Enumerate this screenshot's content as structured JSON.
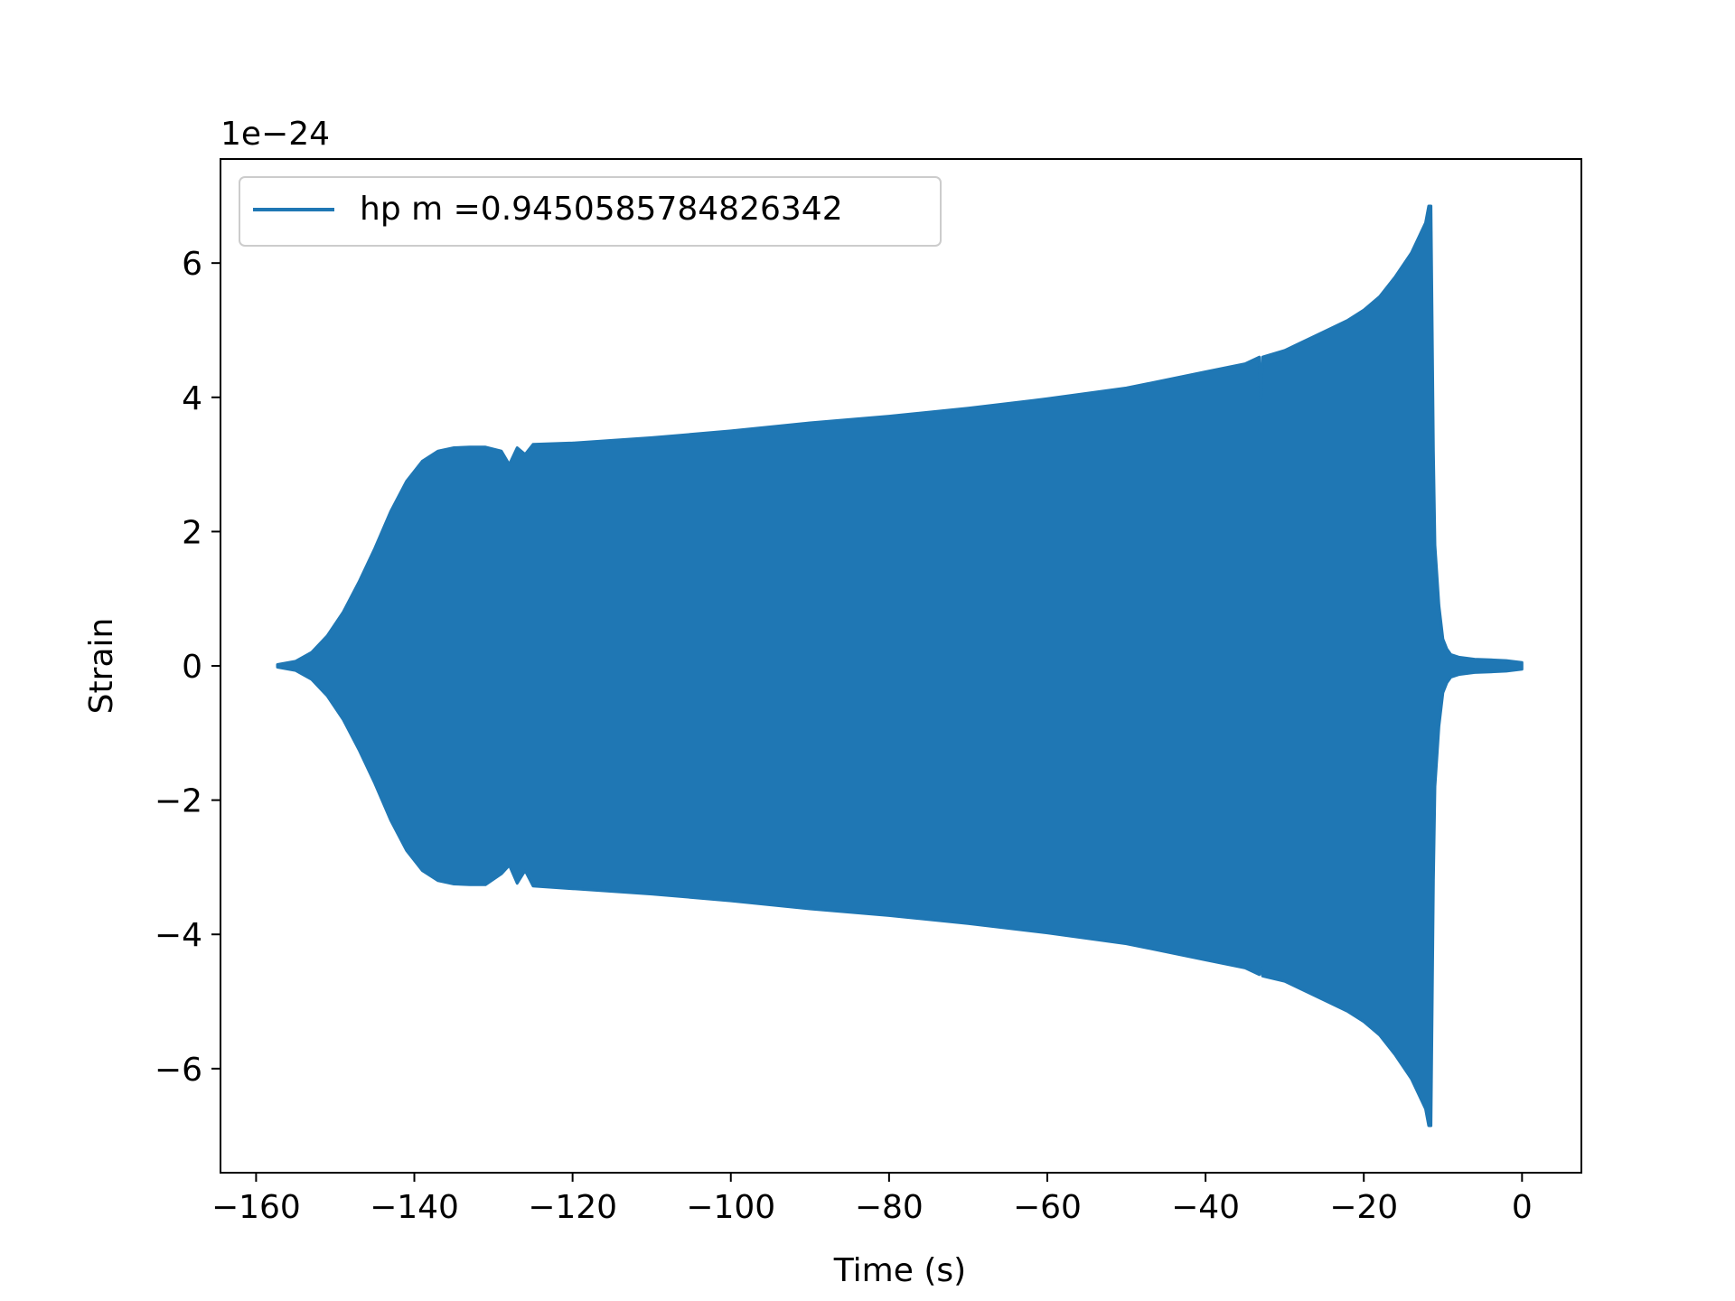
{
  "chart_data": {
    "type": "line",
    "title": "",
    "xlabel": "Time (s)",
    "ylabel": "Strain",
    "y_offset_label": "1e−24",
    "xlim": [
      -164.5,
      7.5
    ],
    "ylim": [
      -7.55,
      7.55
    ],
    "xticks": [
      -160,
      -140,
      -120,
      -100,
      -80,
      -60,
      -40,
      -20,
      0
    ],
    "xtick_labels": [
      "−160",
      "−140",
      "−120",
      "−100",
      "−80",
      "−60",
      "−40",
      "−20",
      "0"
    ],
    "yticks": [
      -6,
      -4,
      -2,
      0,
      2,
      4,
      6
    ],
    "ytick_labels": [
      "−6",
      "−4",
      "−2",
      "0",
      "2",
      "4",
      "6"
    ],
    "grid": false,
    "legend_position": "top-left",
    "series": [
      {
        "name": "hp m =0.9450585784826342",
        "color": "#1f77b4",
        "envelope_description_points": {
          "t": [
            -157.3,
            -155,
            -153,
            -151,
            -149,
            -147,
            -145,
            -143,
            -141,
            -139,
            -137,
            -135,
            -133,
            -131,
            -129,
            -128,
            -127,
            -126,
            -125,
            -120,
            -110,
            -100,
            -90,
            -80,
            -70,
            -60,
            -50,
            -40,
            -35,
            -33.2,
            -33,
            -32.8,
            -30,
            -25,
            -22,
            -20,
            -18,
            -16,
            -14,
            -13,
            -12.2,
            -11.8,
            -11.5,
            -11.2,
            -11,
            -10.5,
            -10,
            -9.5,
            -9,
            -8,
            -6,
            -4,
            -2,
            0
          ],
          "upper": [
            0.02,
            0.07,
            0.2,
            0.45,
            0.8,
            1.25,
            1.75,
            2.3,
            2.75,
            3.05,
            3.2,
            3.25,
            3.26,
            3.26,
            3.2,
            3.0,
            3.25,
            3.15,
            3.3,
            3.32,
            3.4,
            3.5,
            3.62,
            3.72,
            3.84,
            3.98,
            4.14,
            4.38,
            4.5,
            4.6,
            3.95,
            4.6,
            4.7,
            4.98,
            5.15,
            5.3,
            5.5,
            5.8,
            6.15,
            6.4,
            6.6,
            6.85,
            6.85,
            3.2,
            1.8,
            0.9,
            0.4,
            0.25,
            0.17,
            0.13,
            0.1,
            0.09,
            0.08,
            0.05
          ],
          "lower": [
            -0.02,
            -0.07,
            -0.2,
            -0.45,
            -0.8,
            -1.25,
            -1.75,
            -2.3,
            -2.75,
            -3.05,
            -3.2,
            -3.25,
            -3.26,
            -3.26,
            -3.1,
            -2.97,
            -3.24,
            -3.05,
            -3.28,
            -3.32,
            -3.4,
            -3.5,
            -3.62,
            -3.72,
            -3.84,
            -3.98,
            -4.14,
            -4.38,
            -4.5,
            -4.6,
            -4.5,
            -4.62,
            -4.7,
            -4.98,
            -5.15,
            -5.3,
            -5.5,
            -5.8,
            -6.15,
            -6.4,
            -6.6,
            -6.85,
            -6.85,
            -3.2,
            -1.8,
            -0.9,
            -0.4,
            -0.25,
            -0.17,
            -0.13,
            -0.1,
            -0.09,
            -0.08,
            -0.05
          ]
        }
      }
    ]
  }
}
